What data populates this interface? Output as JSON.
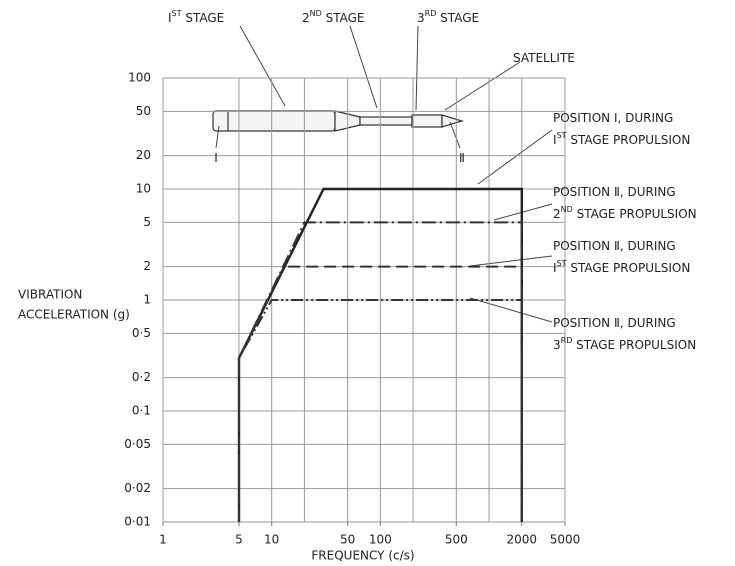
{
  "chart_data": {
    "type": "line",
    "xlabel": "FREQUENCY (c/s)",
    "ylabel_lines": [
      "VIBRATION",
      "ACCELERATION (g)"
    ],
    "xscale": "log",
    "yscale": "log",
    "xlim": [
      1,
      5000
    ],
    "ylim": [
      0.01,
      100
    ],
    "xticks": [
      1,
      5,
      10,
      50,
      100,
      500,
      2000,
      5000
    ],
    "xgrid": [
      1,
      5,
      10,
      20,
      50,
      100,
      200,
      500,
      1000,
      2000,
      5000
    ],
    "yticks": [
      {
        "value": 0.01,
        "label": "0·01"
      },
      {
        "value": 0.02,
        "label": "0·02"
      },
      {
        "value": 0.05,
        "label": "0·05"
      },
      {
        "value": 0.1,
        "label": "0·1"
      },
      {
        "value": 0.2,
        "label": "0·2"
      },
      {
        "value": 0.5,
        "label": "0·5"
      },
      1,
      2,
      5,
      10,
      20,
      50,
      100
    ],
    "grid": true,
    "annotations": [
      [
        "I",
        "ST",
        " STAGE"
      ],
      [
        "2",
        "ND",
        " STAGE"
      ],
      [
        "3",
        "RD",
        " STAGE"
      ],
      [
        "SATELLITE"
      ],
      [
        "Ⅰ"
      ],
      [
        "Ⅱ"
      ]
    ],
    "series": [
      {
        "name_lines": [
          [
            "POSITION Ⅰ, DURING"
          ],
          [
            "I",
            "ST",
            " STAGE PROPULSION"
          ]
        ],
        "color": "#222222",
        "linestyle": "solid",
        "x": [
          5,
          5,
          30,
          2000,
          2000
        ],
        "values": [
          0.01,
          0.3,
          10,
          10,
          0.01
        ]
      },
      {
        "name_lines": [
          [
            "POSITION Ⅱ, DURING"
          ],
          [
            "2",
            "ND",
            " STAGE PROPULSION"
          ]
        ],
        "color": "#333333",
        "linestyle": "dashdot",
        "x": [
          5,
          5,
          20,
          2000,
          2000
        ],
        "values": [
          0.01,
          0.3,
          5,
          5,
          0.01
        ]
      },
      {
        "name_lines": [
          [
            "POSITION Ⅱ, DURING"
          ],
          [
            "I",
            "ST",
            " STAGE PROPULSION"
          ]
        ],
        "color": "#333333",
        "linestyle": "dashed",
        "x": [
          5,
          5,
          13,
          2000,
          2000
        ],
        "values": [
          0.01,
          0.3,
          2,
          2,
          0.01
        ]
      },
      {
        "name_lines": [
          [
            "POSITION Ⅱ, DURING"
          ],
          [
            "3",
            "RD",
            " STAGE PROPULSION"
          ]
        ],
        "color": "#333333",
        "linestyle": "dashdotdot",
        "x": [
          5,
          5,
          10,
          2000,
          2000
        ],
        "values": [
          0.01,
          0.3,
          1,
          1,
          0.01
        ]
      }
    ]
  }
}
